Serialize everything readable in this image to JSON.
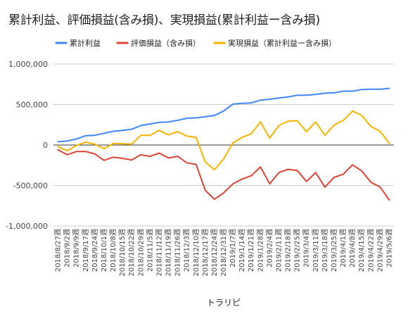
{
  "chart_data": {
    "type": "line",
    "title": "累計利益、評価損益(含み損)、実現損益(累計利益ー含み損)",
    "xlabel": "トラリピ",
    "ylabel": "",
    "ylim": [
      -1000000,
      1000000
    ],
    "yticks": [
      -1000000,
      -500000,
      0,
      500000,
      1000000
    ],
    "ytick_labels": [
      "-1,000,000",
      "-500,000",
      "0",
      "500,000",
      "1,000,000"
    ],
    "grid": true,
    "legend_position": "top",
    "categories": [
      "2018/8/27週",
      "2018/9/2週",
      "2018/9/9週",
      "2018/9/17週",
      "2018/9/24週",
      "2018/10/1週",
      "2018/10/8週",
      "2018/10/15週",
      "2018/10/22週",
      "2018/10/29週",
      "2018/11/5週",
      "2018/11/12週",
      "2018/11/19週",
      "2018/11/26週",
      "2018/12/3週",
      "2018/12/10週",
      "2018/12/17週",
      "2018/12/24週",
      "2018/12/31週",
      "2019/1/7週",
      "2019/1/14週",
      "2019/1/21週",
      "2019/1/28週",
      "2019/2/4週",
      "2019/2/11週",
      "2019/2/18週",
      "2019/2/25週",
      "2019/3/4週",
      "2019/3/11週",
      "2019/3/18週",
      "2019/3/25週",
      "2019/4/1週",
      "2019/4/8週",
      "2019/4/15週",
      "2019/4/22週",
      "2019/4/29週",
      "2019/5/6週"
    ],
    "visible_categories": [
      "2018/8/27週",
      "2018/9/2週",
      "2018/9/9週",
      "2018/9/17週",
      "2018/9/24週",
      "2018/10/1週",
      "2018/10/8週",
      "2018/10/15週",
      "2018/10/22週",
      "2018/10/29週",
      "2018/11/5週",
      "2018/11/12週",
      "2018/11/19週",
      "2018/11/26週",
      "2018/12/3週",
      "2018/12/10週",
      "2018/12/17週",
      "2018/12/24週",
      "2018/12/31週",
      "2019/1/7週",
      "2019/1/14週",
      "2019/1/21週",
      "2019/1/28週",
      "2019/2/4週",
      "2019/2/11週",
      "2019/2/18週",
      "2019/2/25週",
      "2019/3/4週",
      "2019/3/11週",
      "2019/3/18週",
      "2019/3/25週",
      "2019/4/1週",
      "2019/4/8週",
      "2019/4/15週",
      "2019/4/22週",
      "2019/4/29週",
      "2019/5/6週"
    ],
    "series": [
      {
        "name": "累計利益",
        "color": "#4285f4",
        "values": [
          40000,
          50000,
          75000,
          115000,
          120000,
          145000,
          170000,
          180000,
          195000,
          240000,
          260000,
          280000,
          285000,
          305000,
          330000,
          335000,
          350000,
          365000,
          420000,
          505000,
          515000,
          520000,
          555000,
          565000,
          580000,
          595000,
          615000,
          615000,
          625000,
          640000,
          645000,
          665000,
          665000,
          685000,
          690000,
          690000,
          700000
        ]
      },
      {
        "name": "評価損益（含み損）",
        "color": "#db4437",
        "values": [
          -60000,
          -120000,
          -80000,
          -80000,
          -110000,
          -190000,
          -150000,
          -165000,
          -185000,
          -120000,
          -140000,
          -100000,
          -160000,
          -140000,
          -220000,
          -240000,
          -560000,
          -670000,
          -590000,
          -480000,
          -420000,
          -380000,
          -270000,
          -480000,
          -340000,
          -300000,
          -315000,
          -450000,
          -340000,
          -520000,
          -400000,
          -360000,
          -245000,
          -320000,
          -460000,
          -520000,
          -680000
        ]
      },
      {
        "name": "実現損益（累計利益ー含み損）",
        "color": "#f4b400",
        "values": [
          -20000,
          -70000,
          -5000,
          35000,
          10000,
          -45000,
          20000,
          15000,
          10000,
          120000,
          120000,
          180000,
          125000,
          165000,
          110000,
          95000,
          -210000,
          -305000,
          -170000,
          25000,
          95000,
          140000,
          285000,
          85000,
          240000,
          295000,
          300000,
          165000,
          285000,
          120000,
          245000,
          305000,
          420000,
          365000,
          230000,
          170000,
          20000
        ]
      }
    ]
  }
}
